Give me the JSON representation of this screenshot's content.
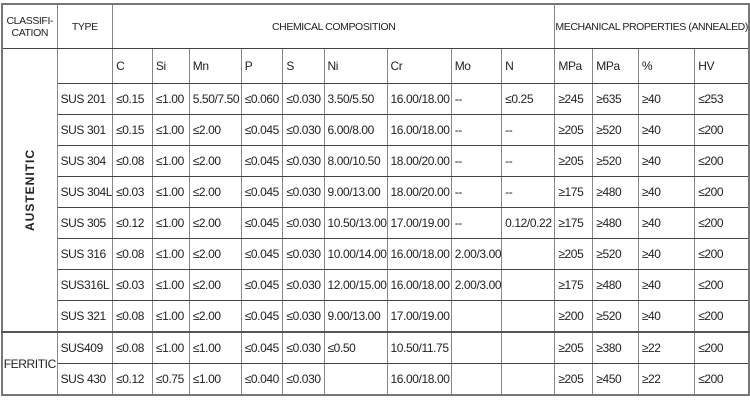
{
  "headers": {
    "classification_line1": "CLASSIFI-",
    "classification_line2": "CATION",
    "type": "TYPE",
    "chemical_composition": "CHEMICAL COMPOSITION",
    "mechanical_properties": "MECHANICAL PROPERTIES (ANNEALED)"
  },
  "subheaders": [
    "C",
    "Si",
    "Mn",
    "P",
    "S",
    "Ni",
    "Cr",
    "Mo",
    "N",
    "MPa",
    "MPa",
    "%",
    "HV"
  ],
  "groups": [
    {
      "label": "AUSTENITIC",
      "rows": [
        [
          "SUS 201",
          "≤0.15",
          "≤1.00",
          "5.50/7.50",
          "≤0.060",
          "≤0.030",
          "3.50/5.50",
          "16.00/18.00",
          "--",
          "≤0.25",
          "≥245",
          "≥635",
          "≥40",
          "≤253"
        ],
        [
          "SUS 301",
          "≤0.15",
          "≤1.00",
          "≤2.00",
          "≤0.045",
          "≤0.030",
          "6.00/8.00",
          "16.00/18.00",
          "--",
          "--",
          "≥205",
          "≥520",
          "≥40",
          "≤200"
        ],
        [
          "SUS 304",
          "≤0.08",
          "≤1.00",
          "≤2.00",
          "≤0.045",
          "≤0.030",
          "8.00/10.50",
          "18.00/20.00",
          "--",
          "--",
          "≥205",
          "≥520",
          "≥40",
          "≤200"
        ],
        [
          "SUS 304L",
          "≤0.03",
          "≤1.00",
          "≤2.00",
          "≤0.045",
          "≤0.030",
          "9.00/13.00",
          "18.00/20.00",
          "--",
          "--",
          "≥175",
          "≥480",
          "≥40",
          "≤200"
        ],
        [
          "SUS 305",
          "≤0.12",
          "≤1.00",
          "≤2.00",
          "≤0.045",
          "≤0.030",
          "10.50/13.00",
          "17.00/19.00",
          "--",
          "0.12/0.22",
          "≥175",
          "≥480",
          "≥40",
          "≤200"
        ],
        [
          "SUS 316",
          "≤0.08",
          "≤1.00",
          "≤2.00",
          "≤0.045",
          "≤0.030",
          "10.00/14.00",
          "16.00/18.00",
          "2.00/3.00",
          "",
          "≥205",
          "≥520",
          "≥40",
          "≤200"
        ],
        [
          "SUS316L",
          "≤0.03",
          "≤1.00",
          "≤2.00",
          "≤0.045",
          "≤0.030",
          "12.00/15.00",
          "16.00/18.00",
          "2.00/3.00",
          "",
          "≥175",
          "≥480",
          "≥40",
          "≤200"
        ],
        [
          "SUS 321",
          "≤0.08",
          "≤1.00",
          "≤2.00",
          "≤0.045",
          "≤0.030",
          "9.00/13.00",
          "17.00/19.00",
          "",
          "",
          "≥200",
          "≥520",
          "≥40",
          "≤200"
        ]
      ]
    },
    {
      "label": "FERRITIC",
      "rows": [
        [
          "SUS409",
          "≤0.08",
          "≤1.00",
          "≤1.00",
          "≤0.045",
          "≤0.030",
          "≤0.50",
          "10.50/11.75",
          "",
          "",
          "≥205",
          "≥380",
          "≥22",
          "≤200"
        ],
        [
          "SUS 430",
          "≤0.12",
          "≤0.75",
          "≤1.00",
          "≤0.040",
          "≤0.030",
          "",
          "16.00/18.00",
          "",
          "",
          "≥205",
          "≥450",
          "≥22",
          "≤200"
        ]
      ]
    }
  ]
}
